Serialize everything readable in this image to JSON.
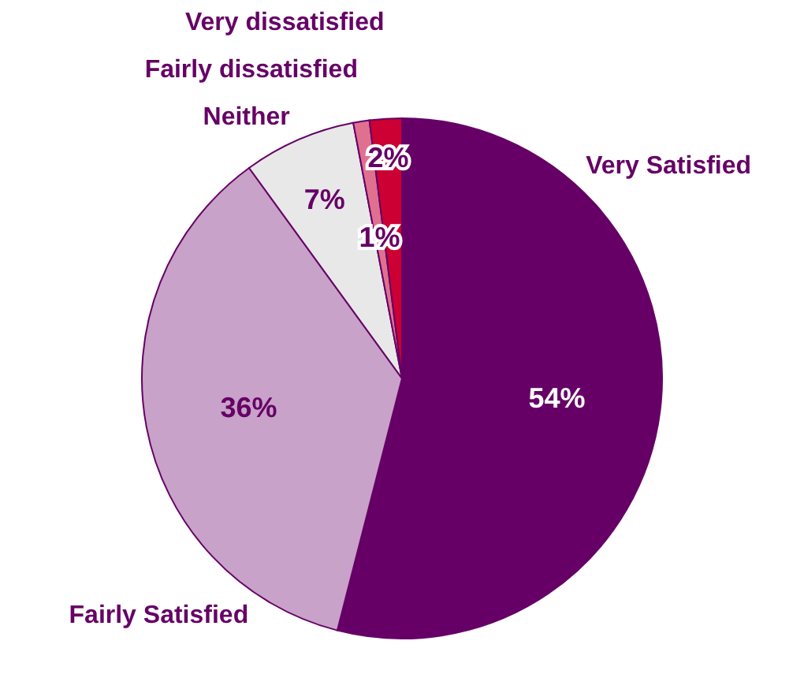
{
  "chart_data": {
    "type": "pie",
    "categories": [
      "Very Satisfied",
      "Fairly Satisfied",
      "Neither",
      "Fairly dissatisfied",
      "Very dissatisfied"
    ],
    "values": [
      54,
      36,
      7,
      1,
      2
    ],
    "colors": [
      "#660066",
      "#c8a2c8",
      "#e8e8e8",
      "#e07090",
      "#cc0033"
    ],
    "value_labels": [
      "54%",
      "36%",
      "7%",
      "1%",
      "2%"
    ]
  }
}
